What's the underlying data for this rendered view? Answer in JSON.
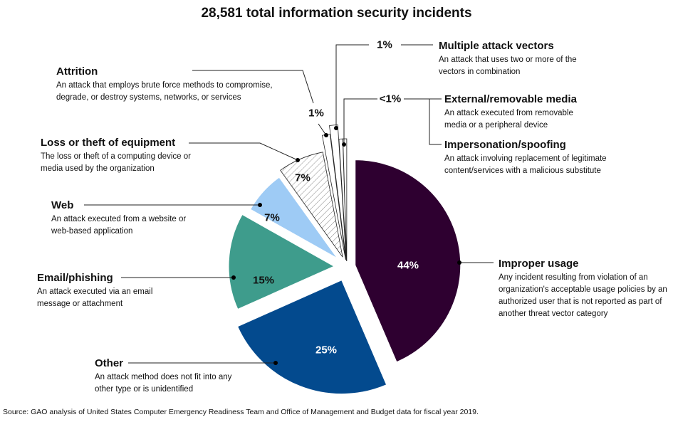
{
  "chart_data": {
    "type": "pie",
    "title": "28,581 total information security incidents",
    "slices": [
      {
        "name": "Improper usage",
        "value": 44,
        "label": "44%",
        "description": "Any incident resulting from violation of an organization's acceptable usage policies by an authorized user that is not reported as part of another threat vector category",
        "color": "#2e0030"
      },
      {
        "name": "Other",
        "value": 25,
        "label": "25%",
        "description": "An attack method does not fit into any other type or is unidentified",
        "color": "#034a8e"
      },
      {
        "name": "Email/phishing",
        "value": 15,
        "label": "15%",
        "description": "An attack executed via an email message or attachment",
        "color": "#3e9c8c"
      },
      {
        "name": "Web",
        "value": 7,
        "label": "7%",
        "description": "An attack executed from a website or web-based application",
        "color": "#9ecbf5"
      },
      {
        "name": "Loss or theft of equipment",
        "value": 7,
        "label": "7%",
        "description": "The loss or theft of a computing device or media used by the organization",
        "color": "hatched"
      },
      {
        "name": "Attrition",
        "value": 1,
        "label": "1%",
        "description": "An attack that employs brute force methods to compromise, degrade, or destroy systems, networks, or services",
        "color": "#ffffff"
      },
      {
        "name": "Multiple attack vectors",
        "value": 1,
        "label": "1%",
        "description": "An attack that uses two or more of the vectors in combination",
        "color": "#ffffff"
      },
      {
        "name": "External/removable media",
        "value": 0.5,
        "label": "<1%",
        "description": "An attack executed from removable media or a peripheral device",
        "color": "#ffffff"
      },
      {
        "name": "Impersonation/spoofing",
        "value": 0.5,
        "label": "<1%",
        "description": "An attack involving replacement of legitimate content/services with a malicious substitute",
        "color": "#ffffff"
      }
    ],
    "source": "Source: GAO analysis of United States Computer Emergency Readiness Team and Office of Management and Budget data for fiscal year 2019."
  }
}
